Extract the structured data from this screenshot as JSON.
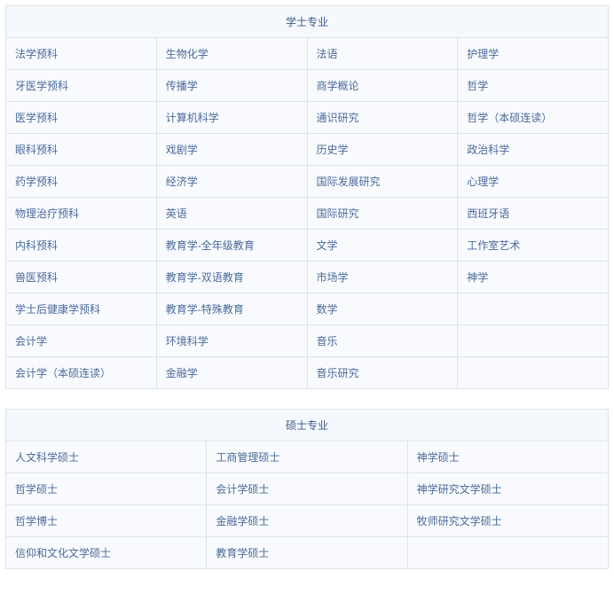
{
  "table1": {
    "title": "学士专业",
    "rows": [
      [
        "法学预科",
        "生物化学",
        "法语",
        "护理学"
      ],
      [
        "牙医学预科",
        "传播学",
        "商学概论",
        "哲学"
      ],
      [
        "医学预科",
        "计算机科学",
        "通识研究",
        "哲学（本硕连读）"
      ],
      [
        "眼科预科",
        "戏剧学",
        "历史学",
        "政治科学"
      ],
      [
        "药学预科",
        "经济学",
        "国际发展研究",
        "心理学"
      ],
      [
        "物理治疗预科",
        "英语",
        "国际研究",
        "西班牙语"
      ],
      [
        "内科预科",
        "教育学-全年级教育",
        "文学",
        "工作室艺术"
      ],
      [
        "兽医预科",
        "教育学-双语教育",
        "市场学",
        "神学"
      ],
      [
        "学士后健康学预科",
        "教育学-特殊教育",
        "数学",
        ""
      ],
      [
        "会计学",
        "环境科学",
        "音乐",
        ""
      ],
      [
        "会计学（本硕连读）",
        "金融学",
        "音乐研究",
        ""
      ]
    ]
  },
  "table2": {
    "title": "硕士专业",
    "rows": [
      [
        "人文科学硕士",
        "工商管理硕士",
        "神学硕士"
      ],
      [
        "哲学硕士",
        "会计学硕士",
        "神学研究文学硕士"
      ],
      [
        "哲学博士",
        "金融学硕士",
        "牧师研究文学硕士"
      ],
      [
        "信仰和文化文学硕士",
        "教育学硕士",
        ""
      ]
    ]
  },
  "style": {
    "border_color": "#dce3ec",
    "header_bg": "#f5f8fc",
    "cell_bg": "#f8fafd",
    "text_color": "#4a6a9a",
    "header_text_color": "#3a5a8a",
    "font_size": 12
  }
}
